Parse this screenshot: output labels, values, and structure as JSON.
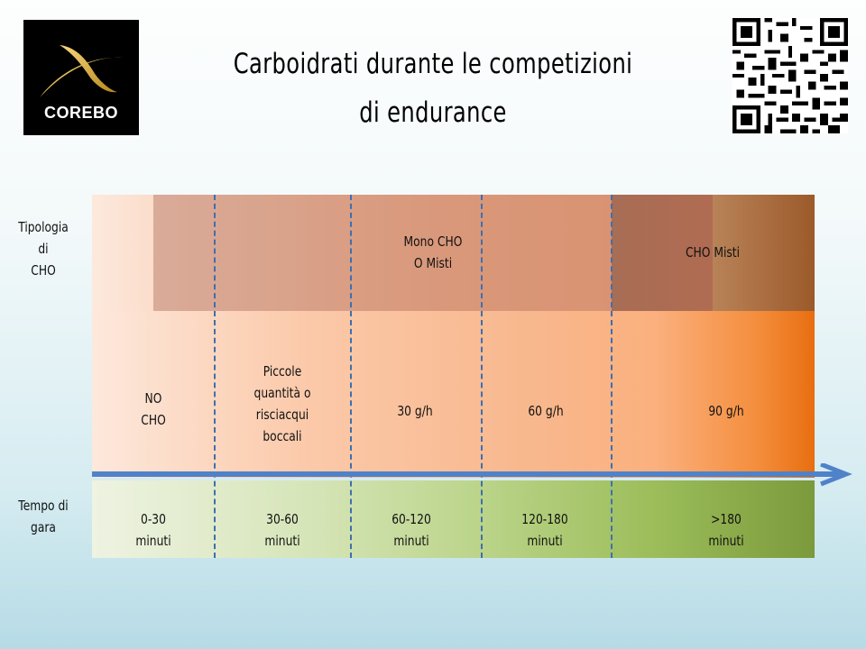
{
  "logo": {
    "text": "COREBO"
  },
  "title": {
    "line1": "Carboidrati durante le competizioni",
    "line2": "di endurance"
  },
  "row_labels": {
    "tipologia": [
      "Tipologia",
      "di",
      "CHO"
    ],
    "tempo": [
      "Tempo di",
      "gara"
    ]
  },
  "tipologia_row": {
    "mono": [
      "Mono CHO",
      "O Misti"
    ],
    "misti": "CHO Misti"
  },
  "intake_row": {
    "no_cho": [
      "NO",
      "CHO"
    ],
    "piccole": [
      "Piccole",
      "quantità o",
      "risciacqui",
      "boccali"
    ],
    "g30": "30 g/h",
    "g60": "60 g/h",
    "g90": "90 g/h"
  },
  "time_row": [
    [
      "0-30",
      "minuti"
    ],
    [
      "30-60",
      "minuti"
    ],
    [
      "60-120",
      "minuti"
    ],
    [
      "120-180",
      "minuti"
    ],
    [
      ">180",
      "minuti"
    ]
  ],
  "colors": {
    "divider": "#3f6fae",
    "arrow": "#4f82c8"
  }
}
